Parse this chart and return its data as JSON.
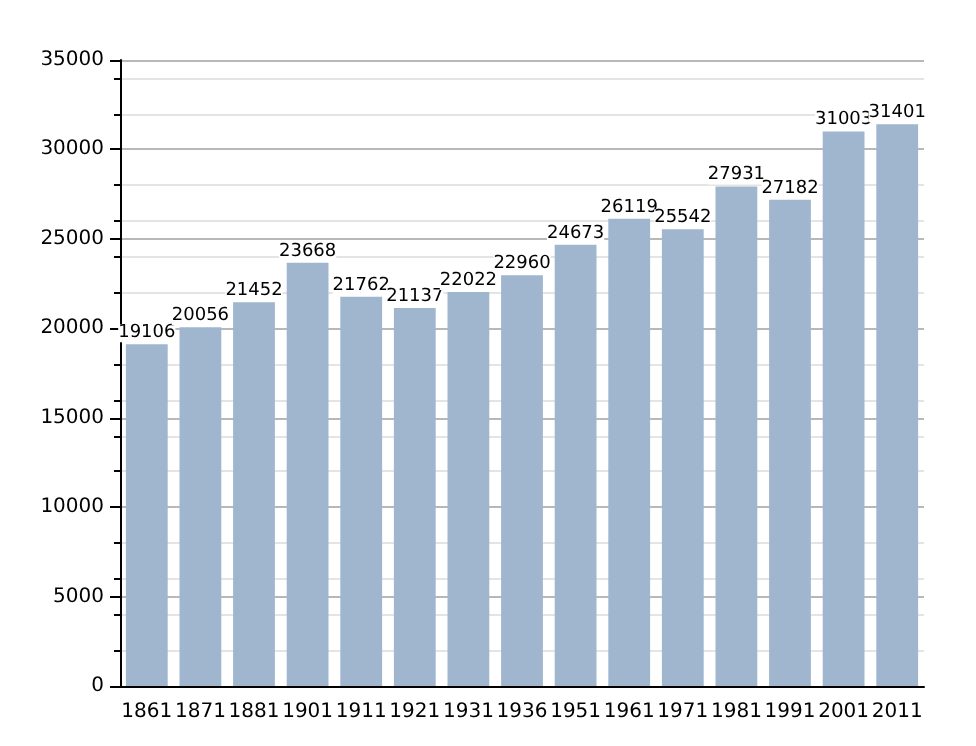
{
  "chart_data": {
    "type": "bar",
    "categories": [
      "1861",
      "1871",
      "1881",
      "1901",
      "1911",
      "1921",
      "1931",
      "1936",
      "1951",
      "1961",
      "1971",
      "1981",
      "1991",
      "2001",
      "2011"
    ],
    "values": [
      19106,
      20056,
      21452,
      23668,
      21762,
      21137,
      22022,
      22960,
      24673,
      26119,
      25542,
      27931,
      27182,
      31003,
      31401
    ],
    "color": "#a0b6cf",
    "ylim": [
      0,
      35000
    ],
    "yticks": [
      0,
      5000,
      10000,
      15000,
      20000,
      25000,
      30000,
      35000
    ],
    "grid": "y",
    "data_labels": true
  }
}
